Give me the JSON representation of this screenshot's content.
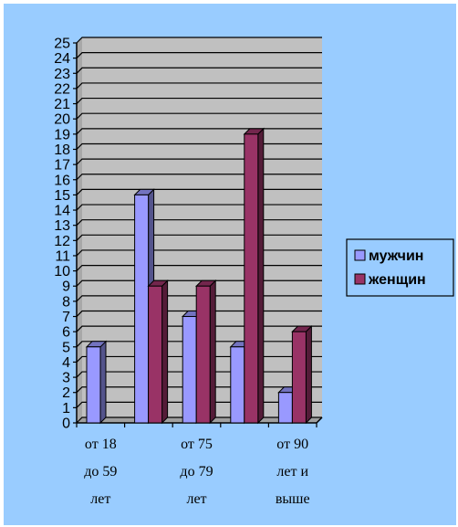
{
  "chart_data": {
    "type": "bar",
    "style": "3d-clustered",
    "categories": [
      [
        "от 18",
        "до 59",
        "лет"
      ],
      [
        "",
        "",
        ""
      ],
      [
        "от 75",
        "до 79",
        "лет"
      ],
      [
        "",
        "",
        ""
      ],
      [
        "от 90",
        "лет и",
        "выше"
      ]
    ],
    "series": [
      {
        "name": "мужчин",
        "color": "#9999ff",
        "values": [
          5,
          15,
          7,
          5,
          2
        ]
      },
      {
        "name": "женщин",
        "color": "#993366",
        "values": [
          0,
          9,
          9,
          19,
          6
        ]
      }
    ],
    "ylim": [
      0,
      25
    ],
    "yticks": [
      0,
      1,
      2,
      3,
      4,
      5,
      6,
      7,
      8,
      9,
      10,
      11,
      12,
      13,
      14,
      15,
      16,
      17,
      18,
      19,
      20,
      21,
      22,
      23,
      24,
      25
    ],
    "grid": true,
    "legend_position": "right",
    "colors": {
      "background": "#99ccff",
      "plot_wall": "#c0c0c0",
      "gridline": "#000000"
    }
  }
}
